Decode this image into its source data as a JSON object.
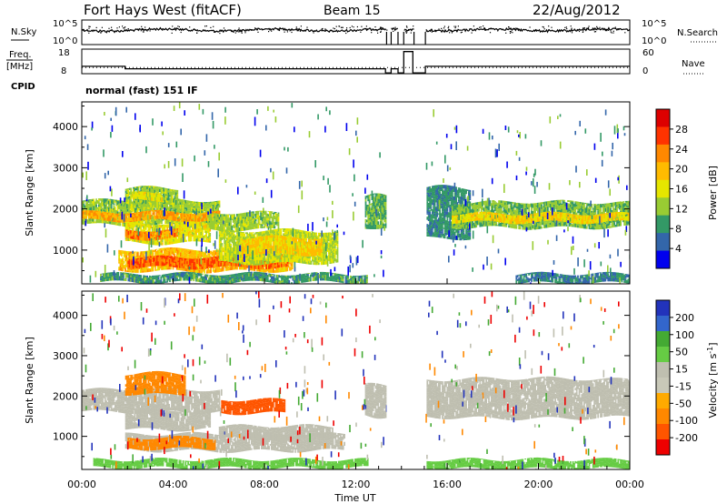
{
  "header": {
    "station": "Fort Hays West (fitACF)",
    "beam": "Beam 15",
    "date": "22/Aug/2012"
  },
  "chart_data": [
    {
      "type": "line",
      "panel": "noise",
      "left_label": "N.Sky",
      "right_label": "N.Search",
      "left_ticks": [
        "10^5",
        "10^0"
      ],
      "right_ticks": [
        "10^5",
        "10^0"
      ],
      "series": [
        {
          "name": "N.Sky",
          "style": "solid"
        },
        {
          "name": "N.Search",
          "style": "dotted"
        }
      ],
      "gaps_hours": [
        [
          13.35,
          13.55
        ],
        [
          13.85,
          14.1
        ],
        [
          14.55,
          15.05
        ]
      ]
    },
    {
      "type": "line",
      "panel": "frequency",
      "left_label_top": "Freq.",
      "left_label_bottom": "[MHz]",
      "right_label": "Nave",
      "left_ticks": [
        "18",
        "8"
      ],
      "right_ticks": [
        "60",
        "0"
      ],
      "freq_segments": [
        {
          "x0": 0,
          "x1": 1.9,
          "y": 11.0
        },
        {
          "x0": 1.9,
          "x1": 13.3,
          "y": 10.0
        },
        {
          "x0": 13.3,
          "x1": 13.55,
          "y": 8.3
        },
        {
          "x0": 13.55,
          "x1": 13.85,
          "y": 10.0
        },
        {
          "x0": 13.85,
          "x1": 14.1,
          "y": 8.3
        },
        {
          "x0": 14.1,
          "x1": 14.5,
          "y": 17.0
        },
        {
          "x0": 14.5,
          "x1": 15.05,
          "y": 8.3
        },
        {
          "x0": 15.05,
          "x1": 24,
          "y": 11.0
        }
      ],
      "nave_level": 10.5
    },
    {
      "type": "text",
      "panel": "cpid",
      "label": "CPID",
      "value": "normal (fast) 151 IF"
    },
    {
      "type": "heatmap",
      "panel": "power",
      "ylabel": "Slant Range [km]",
      "yticks": [
        1000,
        2000,
        3000,
        4000
      ],
      "ylim": [
        180,
        4600
      ],
      "xlim": [
        0,
        24
      ],
      "colorbar_label": "Power [dB]",
      "colorbar_ticks": [
        "28",
        "24",
        "20",
        "16",
        "12",
        "8",
        "4"
      ],
      "colorbar_colors": [
        "#dd0000",
        "#ff3300",
        "#ff8800",
        "#ffbb00",
        "#e6e600",
        "#99cc33",
        "#339966",
        "#3366aa",
        "#0000ee"
      ],
      "bands": [
        {
          "x0": 0.0,
          "x1": 6.0,
          "r0": 1620,
          "r1": 2200,
          "v": 14
        },
        {
          "x0": 0.0,
          "x1": 6.0,
          "r0": 1720,
          "r1": 1920,
          "v": 24
        },
        {
          "x0": 1.9,
          "x1": 4.2,
          "r0": 2020,
          "r1": 2500,
          "v": 14
        },
        {
          "x0": 2.2,
          "x1": 3.5,
          "r0": 2200,
          "r1": 2380,
          "v": 18
        },
        {
          "x0": 1.9,
          "x1": 5.6,
          "r0": 1180,
          "r1": 1640,
          "v": 18
        },
        {
          "x0": 1.9,
          "x1": 4.2,
          "r0": 1280,
          "r1": 1480,
          "v": 25
        },
        {
          "x0": 1.6,
          "x1": 9.2,
          "r0": 500,
          "r1": 1000,
          "v": 22
        },
        {
          "x0": 2.0,
          "x1": 9.0,
          "r0": 580,
          "r1": 820,
          "v": 27
        },
        {
          "x0": 6.0,
          "x1": 11.2,
          "r0": 700,
          "r1": 1450,
          "v": 16
        },
        {
          "x0": 7.0,
          "x1": 10.5,
          "r0": 900,
          "r1": 1300,
          "v": 21
        },
        {
          "x0": 5.5,
          "x1": 8.6,
          "r0": 1500,
          "r1": 1900,
          "v": 14
        },
        {
          "x0": 0.8,
          "x1": 12.5,
          "r0": 220,
          "r1": 420,
          "v": 10
        },
        {
          "x0": 12.4,
          "x1": 13.3,
          "r0": 1500,
          "r1": 2300,
          "v": 12
        },
        {
          "x0": 15.1,
          "x1": 17.0,
          "r0": 1300,
          "r1": 2500,
          "v": 9
        },
        {
          "x0": 16.2,
          "x1": 24.0,
          "r0": 1560,
          "r1": 2150,
          "v": 13
        },
        {
          "x0": 16.2,
          "x1": 24.0,
          "r0": 1680,
          "r1": 1880,
          "v": 20
        },
        {
          "x0": 19.0,
          "x1": 24.0,
          "r0": 200,
          "r1": 420,
          "v": 8
        }
      ]
    },
    {
      "type": "heatmap",
      "panel": "velocity",
      "ylabel": "Slant Range [km]",
      "yticks": [
        1000,
        2000,
        3000,
        4000
      ],
      "ylim": [
        180,
        4600
      ],
      "xlim": [
        0,
        24
      ],
      "xticks": [
        "00:00",
        "04:00",
        "08:00",
        "12:00",
        "16:00",
        "20:00",
        "00:00"
      ],
      "xlabel": "Time UT",
      "colorbar_label": "Velocity [m s",
      "colorbar_label_sup": "-1",
      "colorbar_label_end": "]",
      "colorbar_ticks": [
        "200",
        "100",
        "50",
        "15",
        "-15",
        "-50",
        "-100",
        "-200"
      ],
      "colorbar_colors": [
        "#2233bb",
        "#3366cc",
        "#44aa33",
        "#66cc44",
        "#bfbfb0",
        "#c8c8b8",
        "#ffaa00",
        "#ff8800",
        "#ff5500",
        "#ee0000"
      ],
      "bands": [
        {
          "x0": 0.0,
          "x1": 6.0,
          "r0": 1620,
          "r1": 2150,
          "v": 0
        },
        {
          "x0": 1.9,
          "x1": 4.5,
          "r0": 2050,
          "r1": 2550,
          "v": -90
        },
        {
          "x0": 1.9,
          "x1": 5.6,
          "r0": 1180,
          "r1": 1640,
          "v": 0
        },
        {
          "x0": 6.1,
          "x1": 8.9,
          "r0": 1580,
          "r1": 1900,
          "v": -150
        },
        {
          "x0": 1.9,
          "x1": 11.5,
          "r0": 650,
          "r1": 1050,
          "v": 0
        },
        {
          "x0": 2.0,
          "x1": 5.8,
          "r0": 700,
          "r1": 960,
          "v": -60
        },
        {
          "x0": 6.0,
          "x1": 11.0,
          "r0": 950,
          "r1": 1250,
          "v": 5
        },
        {
          "x0": 0.5,
          "x1": 12.5,
          "r0": 220,
          "r1": 420,
          "v": 40
        },
        {
          "x0": 12.4,
          "x1": 13.3,
          "r0": 1500,
          "r1": 2300,
          "v": 0
        },
        {
          "x0": 15.1,
          "x1": 24.0,
          "r0": 1480,
          "r1": 2400,
          "v": 0
        },
        {
          "x0": 15.1,
          "x1": 24.0,
          "r0": 200,
          "r1": 420,
          "v": 30
        }
      ]
    }
  ]
}
